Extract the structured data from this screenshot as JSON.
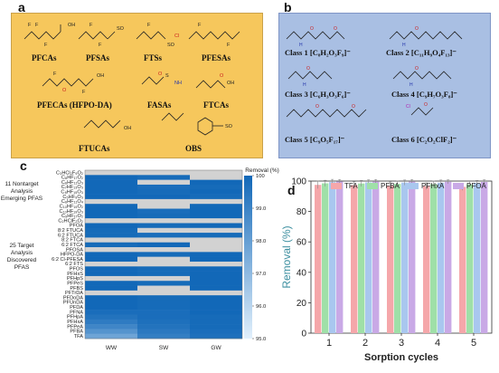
{
  "panels": {
    "a": {
      "letter": "a",
      "bg": "#f6c75c",
      "molecules": [
        "PFCAs",
        "PFSAs",
        "FTSs",
        "PFESAs",
        "PFECAs (HFPO-DA)",
        "FASAs",
        "FTCAs",
        "FTUCAs",
        "OBS"
      ]
    },
    "b": {
      "letter": "b",
      "bg": "#a9bfe3",
      "classes": [
        "Class 1 [C₈H₂O₃F₉]⁻",
        "Class 2 [C₁₁H₉O₄F₁₃]⁻",
        "Class 3 [C₆H₃O₃F₆]⁻",
        "Class 4 [C₉H₇O₃F₈]⁻",
        "Class 5 [C₉O₅F₁₇]⁻",
        "Class 6 [C₂O₂ClF₂]⁻"
      ]
    },
    "c": {
      "letter": "c",
      "group_nontarget": "11 Nontarget Analysis Emerging PFAS",
      "group_target": "25 Target Analysis Discovered PFAS"
    },
    "d": {
      "letter": "d"
    }
  },
  "chart_data": [
    {
      "type": "heatmap",
      "colorbar_title": "Removal (%)",
      "colorbar_ticks": [
        95.0,
        96.0,
        97.0,
        98.0,
        99.0,
        100
      ],
      "colorbar_tick_labels": [
        "95.0",
        "96.0",
        "97.0",
        "98.0",
        "99.0",
        "100"
      ],
      "vmin": 95.0,
      "vmax": 100,
      "columns": [
        "WW",
        "SW",
        "GW"
      ],
      "rows": [
        "C₃HCl₂F₉O₂",
        "C₈HF₁₇O₂",
        "C₆HF₁₁O₃",
        "C₇HF₁₃O₃",
        "C₈HF₁₅O₃",
        "C₅HF₉O₃",
        "C₆HF₁₁O₄",
        "C₁₀HF₁₉O₂",
        "C₁₀HF₁₉O₃",
        "C₉HF₁₇O₂",
        "C₂HClF₂O₂",
        "PFOA",
        "8:2 FTUCA",
        "6:2 FTUCA",
        "8:2 FTCA",
        "6:2 FTCA",
        "PFOSA",
        "HFPO-DA",
        "6:2 Cl-PFESA",
        "6:2 FTS",
        "PFOS",
        "PFHxS",
        "PFHpS",
        "PFPeS",
        "PFBS",
        "PFTrDA",
        "PFDoDA",
        "PFUnDA",
        "PFDA",
        "PFNA",
        "PFHpA",
        "PFHxA",
        "PFPeA",
        "PFBA",
        "TFA"
      ],
      "na_value": null,
      "values": [
        [
          null,
          null,
          null
        ],
        [
          100,
          99.9,
          null
        ],
        [
          100,
          null,
          100
        ],
        [
          100,
          99.8,
          99.9
        ],
        [
          100,
          99.9,
          100
        ],
        [
          100,
          100,
          99.9
        ],
        [
          null,
          null,
          null
        ],
        [
          100,
          null,
          100
        ],
        [
          100,
          99.8,
          100
        ],
        [
          100,
          99.9,
          100
        ],
        [
          null,
          null,
          null
        ],
        [
          100,
          99.9,
          100
        ],
        [
          99.9,
          null,
          null
        ],
        [
          99.9,
          99.8,
          99.9
        ],
        [
          null,
          null,
          null
        ],
        [
          99.9,
          100,
          null
        ],
        [
          null,
          null,
          null
        ],
        [
          100,
          99.9,
          100
        ],
        [
          100,
          null,
          100
        ],
        [
          null,
          null,
          null
        ],
        [
          100,
          99.9,
          100
        ],
        [
          100,
          99.9,
          100
        ],
        [
          null,
          null,
          100
        ],
        [
          100,
          99.9,
          100
        ],
        [
          100,
          null,
          100
        ],
        [
          null,
          null,
          null
        ],
        [
          100,
          99.9,
          100
        ],
        [
          100,
          99.9,
          100
        ],
        [
          100,
          99.9,
          100
        ],
        [
          99.8,
          99.8,
          100
        ],
        [
          99.6,
          99.8,
          99.9
        ],
        [
          99.3,
          99.7,
          99.9
        ],
        [
          98.9,
          99.6,
          99.9
        ],
        [
          98.4,
          99.4,
          99.8
        ],
        [
          97.8,
          99.2,
          99.7
        ]
      ]
    },
    {
      "type": "bar",
      "ylabel": "Removal (%)",
      "xlabel": "Sorption cycles",
      "ylim": [
        0,
        100
      ],
      "yticks": [
        0,
        20,
        40,
        60,
        80,
        100
      ],
      "categories": [
        "1",
        "2",
        "3",
        "4",
        "5"
      ],
      "legend": "top",
      "series": [
        {
          "name": "TFA",
          "color": "#f5a7aa",
          "values": [
            97.5,
            97.3,
            97.0,
            96.6,
            96.2
          ],
          "errors": [
            2.5,
            2.3,
            2.4,
            2.2,
            2.3
          ]
        },
        {
          "name": "PFBA",
          "color": "#9fe0a8",
          "values": [
            98.5,
            98.4,
            98.1,
            98.0,
            97.8
          ],
          "errors": [
            2.0,
            2.0,
            2.0,
            2.1,
            2.0
          ]
        },
        {
          "name": "PFHxA",
          "color": "#a9c7ef",
          "values": [
            99.3,
            99.1,
            99.0,
            98.9,
            98.7
          ],
          "errors": [
            1.8,
            1.7,
            1.7,
            1.8,
            1.7
          ]
        },
        {
          "name": "PFOA",
          "color": "#c9a9e6",
          "values": [
            99.7,
            99.6,
            99.6,
            99.5,
            99.4
          ],
          "errors": [
            1.3,
            1.4,
            1.4,
            1.3,
            1.4
          ]
        }
      ]
    }
  ]
}
